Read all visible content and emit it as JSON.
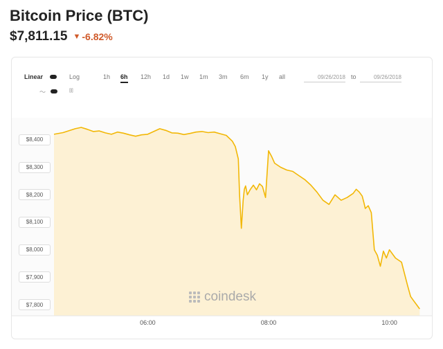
{
  "header": {
    "title": "Bitcoin Price (BTC)",
    "price": "$7,811.15",
    "change": "-6.82%",
    "change_color": "#d05a2a"
  },
  "controls": {
    "scale_linear": "Linear",
    "scale_log": "Log",
    "ranges": [
      "1h",
      "6h",
      "12h",
      "1d",
      "1w",
      "1m",
      "3m",
      "6m",
      "1y",
      "all"
    ],
    "active_range": "6h",
    "date_from": "09/26/2018",
    "date_to_label": "to",
    "date_to": "09/26/2018",
    "line_icon": "line-chart-icon",
    "candle_icon": "candlestick-icon"
  },
  "watermark": "coindesk",
  "chart_data": {
    "type": "area",
    "title": "",
    "xlabel": "",
    "ylabel": "",
    "line_color": "#f2b705",
    "fill_color": "#fdf1d4",
    "grid": false,
    "legend": "none",
    "xlim": [
      4.45,
      10.6
    ],
    "ylim": [
      7760,
      8460
    ],
    "x_ticks": [
      {
        "v": 6,
        "label": "06:00"
      },
      {
        "v": 8,
        "label": "08:00"
      },
      {
        "v": 10,
        "label": "10:00"
      }
    ],
    "y_ticks": [
      {
        "v": 8400,
        "label": "$8,400"
      },
      {
        "v": 8300,
        "label": "$8,300"
      },
      {
        "v": 8200,
        "label": "$8,200"
      },
      {
        "v": 8100,
        "label": "$8,100"
      },
      {
        "v": 8000,
        "label": "$8,000"
      },
      {
        "v": 7900,
        "label": "$7,900"
      },
      {
        "v": 7800,
        "label": "$7,800"
      }
    ],
    "x": [
      4.45,
      4.6,
      4.8,
      4.9,
      5.0,
      5.1,
      5.2,
      5.3,
      5.4,
      5.5,
      5.6,
      5.7,
      5.8,
      5.9,
      6.0,
      6.1,
      6.2,
      6.3,
      6.4,
      6.5,
      6.6,
      6.7,
      6.8,
      6.9,
      7.0,
      7.1,
      7.2,
      7.3,
      7.4,
      7.45,
      7.5,
      7.52,
      7.55,
      7.58,
      7.6,
      7.62,
      7.65,
      7.7,
      7.75,
      7.8,
      7.85,
      7.9,
      7.95,
      8.0,
      8.05,
      8.1,
      8.2,
      8.3,
      8.4,
      8.5,
      8.6,
      8.7,
      8.8,
      8.9,
      9.0,
      9.1,
      9.2,
      9.3,
      9.4,
      9.45,
      9.5,
      9.55,
      9.58,
      9.6,
      9.65,
      9.7,
      9.75,
      9.8,
      9.85,
      9.9,
      9.95,
      10.0,
      10.1,
      10.2,
      10.3,
      10.35,
      10.4,
      10.45,
      10.5
    ],
    "values": [
      8420,
      8426,
      8440,
      8445,
      8438,
      8430,
      8432,
      8425,
      8420,
      8428,
      8424,
      8418,
      8413,
      8418,
      8420,
      8430,
      8440,
      8434,
      8425,
      8424,
      8419,
      8423,
      8428,
      8430,
      8426,
      8428,
      8422,
      8416,
      8395,
      8375,
      8330,
      8200,
      8078,
      8180,
      8220,
      8232,
      8200,
      8220,
      8235,
      8218,
      8240,
      8230,
      8190,
      8360,
      8340,
      8315,
      8300,
      8290,
      8285,
      8270,
      8255,
      8235,
      8210,
      8180,
      8165,
      8200,
      8180,
      8190,
      8205,
      8220,
      8210,
      8195,
      8170,
      8150,
      8160,
      8135,
      8000,
      7980,
      7940,
      7995,
      7970,
      8000,
      7970,
      7955,
      7870,
      7830,
      7815,
      7800,
      7785
    ]
  }
}
